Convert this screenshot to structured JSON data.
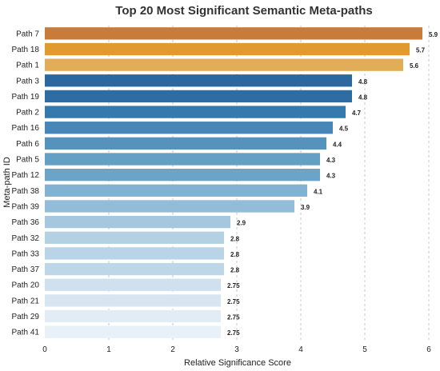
{
  "chart_data": {
    "type": "bar",
    "orientation": "horizontal",
    "title": "Top 20 Most Significant Semantic Meta-paths",
    "xlabel": "Relative Significance Score",
    "ylabel": "Meta-path ID",
    "xlim": [
      0,
      6
    ],
    "xticks": [
      "0",
      "1",
      "2",
      "3",
      "4",
      "5",
      "6"
    ],
    "grid": "x-dashed",
    "categories": [
      "Path 7",
      "Path 18",
      "Path 1",
      "Path 3",
      "Path 19",
      "Path 2",
      "Path 16",
      "Path 6",
      "Path 5",
      "Path 12",
      "Path 38",
      "Path 39",
      "Path 36",
      "Path 32",
      "Path 33",
      "Path 37",
      "Path 20",
      "Path 21",
      "Path 29",
      "Path 41"
    ],
    "values": [
      5.9,
      5.7,
      5.6,
      4.8,
      4.8,
      4.7,
      4.5,
      4.4,
      4.3,
      4.3,
      4.1,
      3.9,
      2.9,
      2.8,
      2.8,
      2.8,
      2.75,
      2.75,
      2.75,
      2.75
    ],
    "value_labels": [
      "5.9",
      "5.7",
      "5.6",
      "4.8",
      "4.8",
      "4.7",
      "4.5",
      "4.4",
      "4.3",
      "4.3",
      "4.1",
      "3.9",
      "2.9",
      "2.8",
      "2.8",
      "2.8",
      "2.75",
      "2.75",
      "2.75",
      "2.75"
    ],
    "colors": [
      "#c97c3a",
      "#e09a2e",
      "#e2ad58",
      "#2b68a0",
      "#2e6da4",
      "#3579ad",
      "#4786b6",
      "#5592bc",
      "#64a0c6",
      "#6ca4c9",
      "#82b2d2",
      "#93bcd9",
      "#a6c8df",
      "#b4d1e4",
      "#b9d4e6",
      "#bed7e8",
      "#cfe0ee",
      "#d8e6f2",
      "#e1ecf5",
      "#e8f0f8"
    ]
  }
}
